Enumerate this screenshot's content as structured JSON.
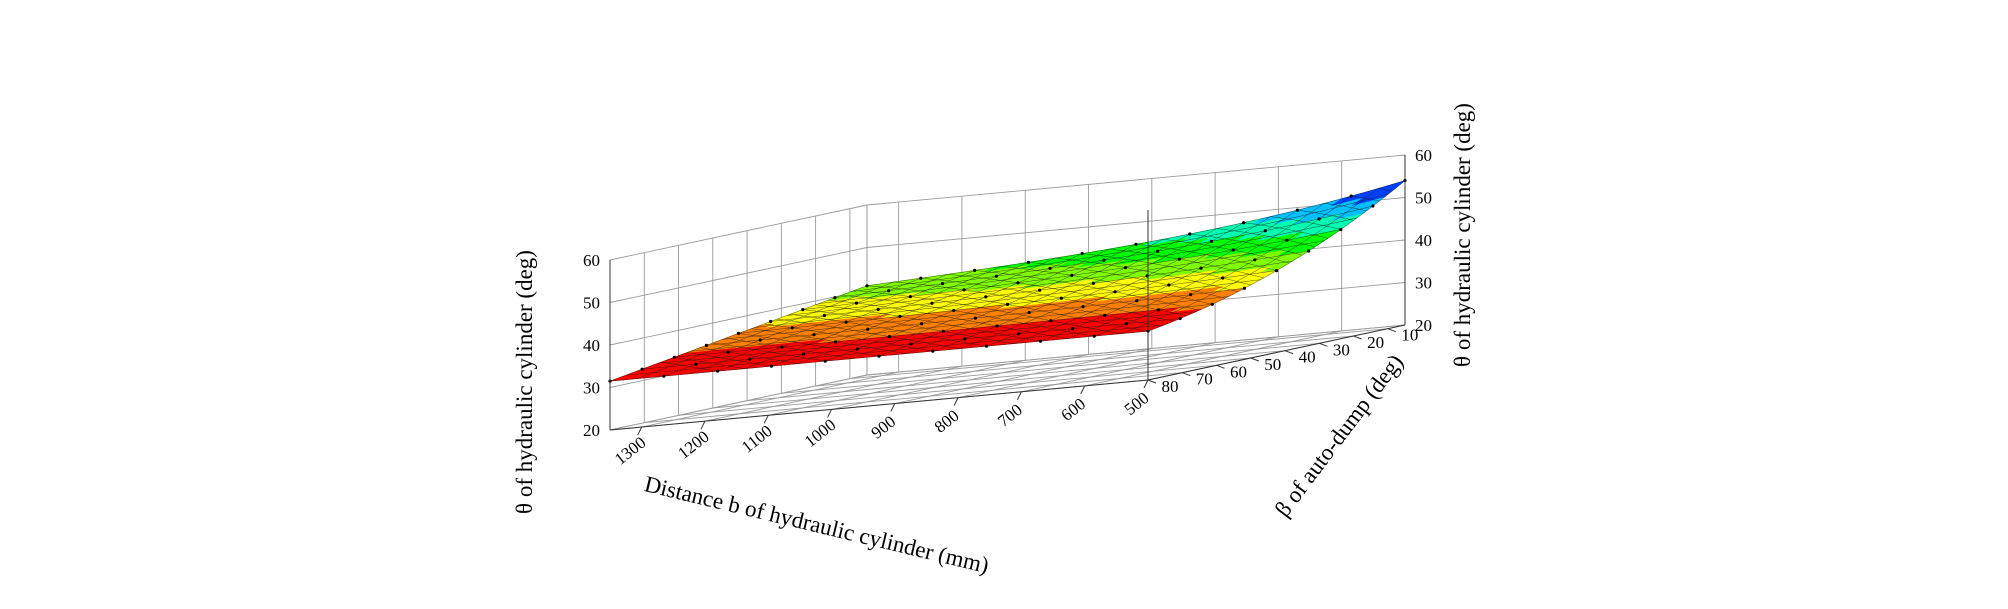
{
  "chart_data": {
    "type": "surface",
    "title": "",
    "x_axis": {
      "label": "Distance b of hydraulic cylinder (mm)",
      "ticks": [
        1300,
        1200,
        1100,
        1000,
        900,
        800,
        700,
        600,
        500
      ],
      "range": [
        500,
        1350
      ]
    },
    "y_axis": {
      "label": "β of auto-dump (deg)",
      "ticks": [
        10,
        20,
        30,
        40,
        50,
        60,
        70,
        80
      ],
      "range": [
        5,
        80
      ]
    },
    "z_axis": {
      "label": "θ of hydraulic cylinder (deg)",
      "ticks": [
        20,
        30,
        40,
        50,
        60
      ],
      "range": [
        20,
        60
      ]
    },
    "z_axis_right": {
      "label": "θ of hydraulic cylinder (deg)",
      "ticks": [
        20,
        30,
        40,
        50,
        60
      ]
    },
    "colormap": [
      "#ff0000",
      "#ff8000",
      "#ffff00",
      "#80ff00",
      "#00ff00",
      "#00ffb0",
      "#00c0ff",
      "#0040ff",
      "#8000ff",
      "#ff00ff"
    ],
    "grid": true,
    "surface_samples": [
      {
        "b": 1350,
        "beta": 80,
        "theta": 31.5
      },
      {
        "b": 1350,
        "beta": 5,
        "theta": 44
      },
      {
        "b": 500,
        "beta": 80,
        "theta": 31.5
      },
      {
        "b": 500,
        "beta": 5,
        "theta": 54
      }
    ]
  }
}
